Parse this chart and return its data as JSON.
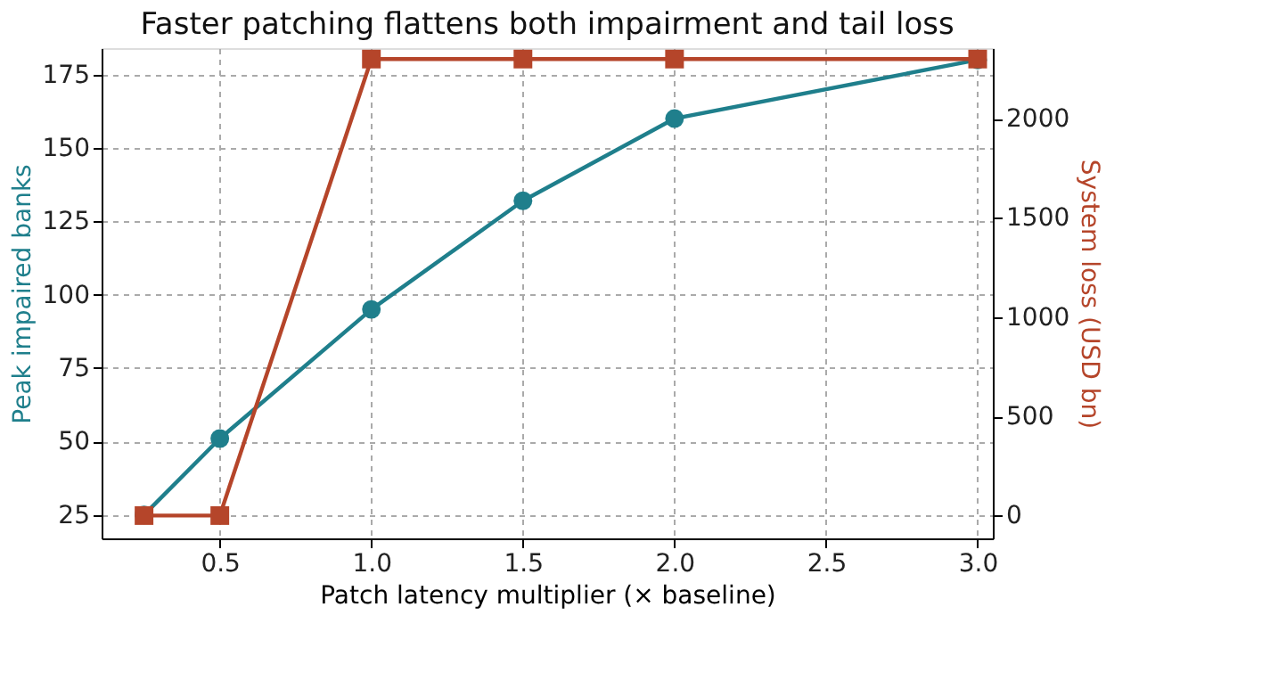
{
  "chart_data": {
    "type": "line",
    "title": "Faster patching flattens both impairment and tail loss",
    "xlabel": "Patch latency multiplier (× baseline)",
    "ylabel": "Peak impaired banks",
    "y2label": "System loss (USD bn)",
    "x": [
      0.25,
      0.5,
      1.0,
      1.5,
      2.0,
      3.0
    ],
    "series": [
      {
        "color": "#1f7f8c",
        "values": [
          25,
          51,
          95,
          132,
          160,
          180
        ],
        "marker": "circle"
      },
      {
        "color": "#b5452a",
        "values": [
          0,
          0,
          2300,
          2300,
          2300,
          2300
        ],
        "marker": "square",
        "axis": "y2"
      }
    ],
    "xlim": [
      0.11,
      3.05
    ],
    "xticks": [
      0.5,
      {
        "value": 1,
        "label": "1.0"
      },
      1.5,
      {
        "value": 2,
        "label": "2.0"
      },
      2.5,
      {
        "value": 3,
        "label": "3.0"
      }
    ],
    "ylim": [
      17,
      184
    ],
    "yticks": [
      25,
      50,
      75,
      100,
      125,
      150,
      175
    ],
    "y2lim": [
      -115,
      2355
    ],
    "y2ticks": [
      0,
      500,
      1000,
      1500,
      2000
    ],
    "grid": true,
    "line_style": "solid"
  }
}
